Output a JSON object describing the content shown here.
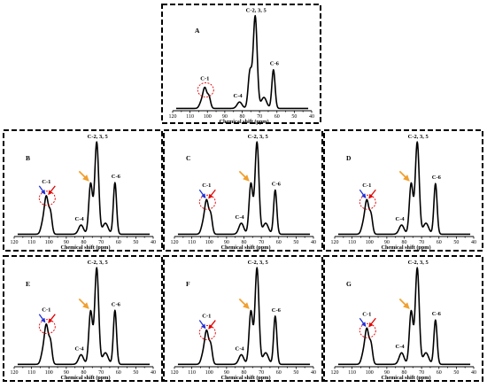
{
  "chart_data": [
    {
      "type": "line",
      "panel_label": "A",
      "xlabel": "Chemical shift (ppm)",
      "xlim": [
        120,
        40
      ],
      "x_ticks": [
        120,
        110,
        100,
        90,
        80,
        70,
        60,
        50,
        40
      ],
      "x_reversed": true,
      "peaks": [
        {
          "label": "C-1",
          "ppm": 101.5,
          "rel_intensity": 0.22,
          "circled": true
        },
        {
          "label": "C-4",
          "ppm": 81.5,
          "rel_intensity": 0.07
        },
        {
          "label": "C-2, 3, 5",
          "ppm": 72.5,
          "rel_intensity": 1.0
        },
        {
          "label": "C-6",
          "ppm": 62.0,
          "rel_intensity": 0.42
        }
      ],
      "arrows": {
        "blue": false,
        "red": false,
        "orange": false
      }
    },
    {
      "type": "line",
      "panel_label": "B",
      "xlabel": "Chemical shift (ppm)",
      "xlim": [
        120,
        40
      ],
      "x_ticks": [
        120,
        110,
        100,
        90,
        80,
        70,
        60,
        50,
        40
      ],
      "x_reversed": true,
      "peaks": [
        {
          "label": "C-1",
          "ppm": 101.5,
          "rel_intensity": 0.4,
          "circled": true
        },
        {
          "label": "C-4",
          "ppm": 81.5,
          "rel_intensity": 0.1
        },
        {
          "label": "C-2, 3, 5",
          "ppm": 72.5,
          "rel_intensity": 1.0,
          "shoulder_ppm": 76.0
        },
        {
          "label": "C-6",
          "ppm": 62.0,
          "rel_intensity": 0.56
        }
      ],
      "arrows": {
        "blue": true,
        "red": true,
        "orange": true
      }
    },
    {
      "type": "line",
      "panel_label": "C",
      "xlabel": "Chemical shift (ppm)",
      "xlim": [
        120,
        40
      ],
      "x_ticks": [
        120,
        110,
        100,
        90,
        80,
        70,
        60,
        50,
        40
      ],
      "x_reversed": true,
      "peaks": [
        {
          "label": "C-1",
          "ppm": 101.5,
          "rel_intensity": 0.36,
          "circled": true
        },
        {
          "label": "C-4",
          "ppm": 81.5,
          "rel_intensity": 0.12
        },
        {
          "label": "C-2, 3, 5",
          "ppm": 72.5,
          "rel_intensity": 1.0,
          "shoulder_ppm": 76.0
        },
        {
          "label": "C-6",
          "ppm": 62.0,
          "rel_intensity": 0.48
        }
      ],
      "arrows": {
        "blue": true,
        "red": true,
        "orange": true
      }
    },
    {
      "type": "line",
      "panel_label": "D",
      "xlabel": "Chemical shift (ppm)",
      "xlim": [
        120,
        40
      ],
      "x_ticks": [
        120,
        110,
        100,
        90,
        80,
        70,
        60,
        50,
        40
      ],
      "x_reversed": true,
      "peaks": [
        {
          "label": "C-1",
          "ppm": 101.5,
          "rel_intensity": 0.36,
          "circled": true
        },
        {
          "label": "C-4",
          "ppm": 81.5,
          "rel_intensity": 0.1
        },
        {
          "label": "C-2, 3, 5",
          "ppm": 72.5,
          "rel_intensity": 1.0,
          "shoulder_ppm": 76.0
        },
        {
          "label": "C-6",
          "ppm": 62.0,
          "rel_intensity": 0.55
        }
      ],
      "arrows": {
        "blue": true,
        "red": true,
        "orange": true
      }
    },
    {
      "type": "line",
      "panel_label": "E",
      "xlabel": "Chemical shift (ppm)",
      "xlim": [
        120,
        40
      ],
      "x_ticks": [
        120,
        110,
        100,
        90,
        80,
        70,
        60,
        50,
        40
      ],
      "x_reversed": true,
      "peaks": [
        {
          "label": "C-1",
          "ppm": 101.5,
          "rel_intensity": 0.4,
          "circled": true
        },
        {
          "label": "C-4",
          "ppm": 81.5,
          "rel_intensity": 0.1
        },
        {
          "label": "C-2, 3, 5",
          "ppm": 72.5,
          "rel_intensity": 1.0,
          "shoulder_ppm": 76.0
        },
        {
          "label": "C-6",
          "ppm": 62.0,
          "rel_intensity": 0.56
        }
      ],
      "arrows": {
        "blue": true,
        "red": true,
        "orange": true
      }
    },
    {
      "type": "line",
      "panel_label": "F",
      "xlabel": "Chemical shift (ppm)",
      "xlim": [
        120,
        40
      ],
      "x_ticks": [
        120,
        110,
        100,
        90,
        80,
        70,
        60,
        50,
        40
      ],
      "x_reversed": true,
      "peaks": [
        {
          "label": "C-1",
          "ppm": 101.5,
          "rel_intensity": 0.34,
          "circled": true
        },
        {
          "label": "C-4",
          "ppm": 81.5,
          "rel_intensity": 0.1
        },
        {
          "label": "C-2, 3, 5",
          "ppm": 72.5,
          "rel_intensity": 1.0,
          "shoulder_ppm": 76.0
        },
        {
          "label": "C-6",
          "ppm": 62.0,
          "rel_intensity": 0.5
        }
      ],
      "arrows": {
        "blue": true,
        "red": true,
        "orange": true
      }
    },
    {
      "type": "line",
      "panel_label": "G",
      "xlabel": "Chemical shift (ppm)",
      "xlim": [
        120,
        40
      ],
      "x_ticks": [
        120,
        110,
        100,
        90,
        80,
        70,
        60,
        50,
        40
      ],
      "x_reversed": true,
      "peaks": [
        {
          "label": "C-1",
          "ppm": 101.5,
          "rel_intensity": 0.36,
          "circled": true
        },
        {
          "label": "C-4",
          "ppm": 81.5,
          "rel_intensity": 0.12
        },
        {
          "label": "C-2, 3, 5",
          "ppm": 72.5,
          "rel_intensity": 1.0,
          "shoulder_ppm": 76.0
        },
        {
          "label": "C-6",
          "ppm": 62.0,
          "rel_intensity": 0.46
        }
      ],
      "arrows": {
        "blue": true,
        "red": true,
        "orange": true
      }
    }
  ],
  "colors": {
    "spectrum": "#000000",
    "c1_circle": "#e00000",
    "arrow_blue": "#1f2fd8",
    "arrow_red": "#e00000",
    "arrow_orange": "#f0a030"
  }
}
